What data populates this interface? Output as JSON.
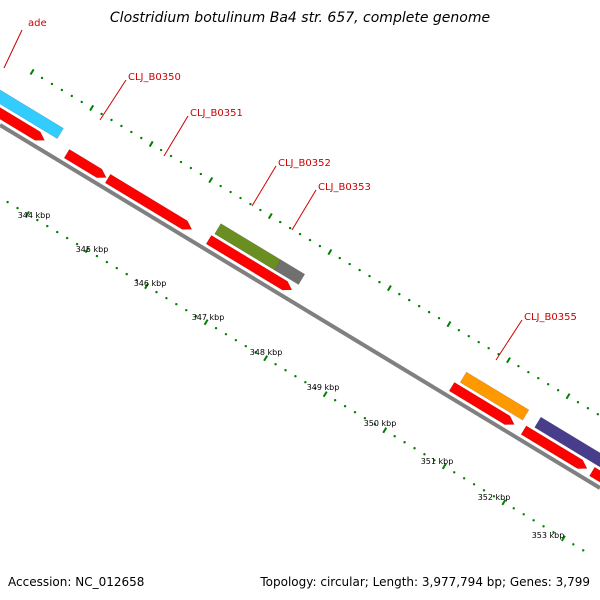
{
  "title": "Clostridium botulinum Ba4 str. 657, complete genome",
  "footer": {
    "accession": "Accession: NC_012658",
    "summary": "Topology: circular; Length: 3,977,794 bp; Genes: 3,799"
  },
  "ticks": {
    "labels": [
      "344 kbp",
      "345 kbp",
      "346 kbp",
      "347 kbp",
      "348 kbp",
      "349 kbp",
      "350 kbp",
      "351 kbp",
      "352 kbp",
      "353 kbp"
    ],
    "color": "#008000"
  },
  "backbone_color": "#808080",
  "genes": [
    {
      "label": "ade",
      "label_color": "#cc0000",
      "feature_colors": [
        "#33ccff",
        "#ff0000"
      ]
    },
    {
      "label": "CLJ_B0350",
      "label_color": "#cc0000",
      "feature_colors": [
        "#ff0000"
      ]
    },
    {
      "label": "CLJ_B0351",
      "label_color": "#cc0000",
      "feature_colors": [
        "#ff0000"
      ]
    },
    {
      "label": "CLJ_B0352",
      "label_color": "#cc0000",
      "feature_colors": [
        "#6b8e23",
        "#ff0000"
      ]
    },
    {
      "label": "CLJ_B0353",
      "label_color": "#cc0000",
      "feature_colors": [
        "#707070",
        "#ff0000"
      ]
    },
    {
      "label": "CLJ_B0355",
      "label_color": "#cc0000",
      "feature_colors": [
        "#ff9900",
        "#ff0000"
      ]
    },
    {
      "label": "",
      "label_color": "#cc0000",
      "feature_colors": [
        "#483d8b",
        "#ff0000"
      ]
    }
  ]
}
